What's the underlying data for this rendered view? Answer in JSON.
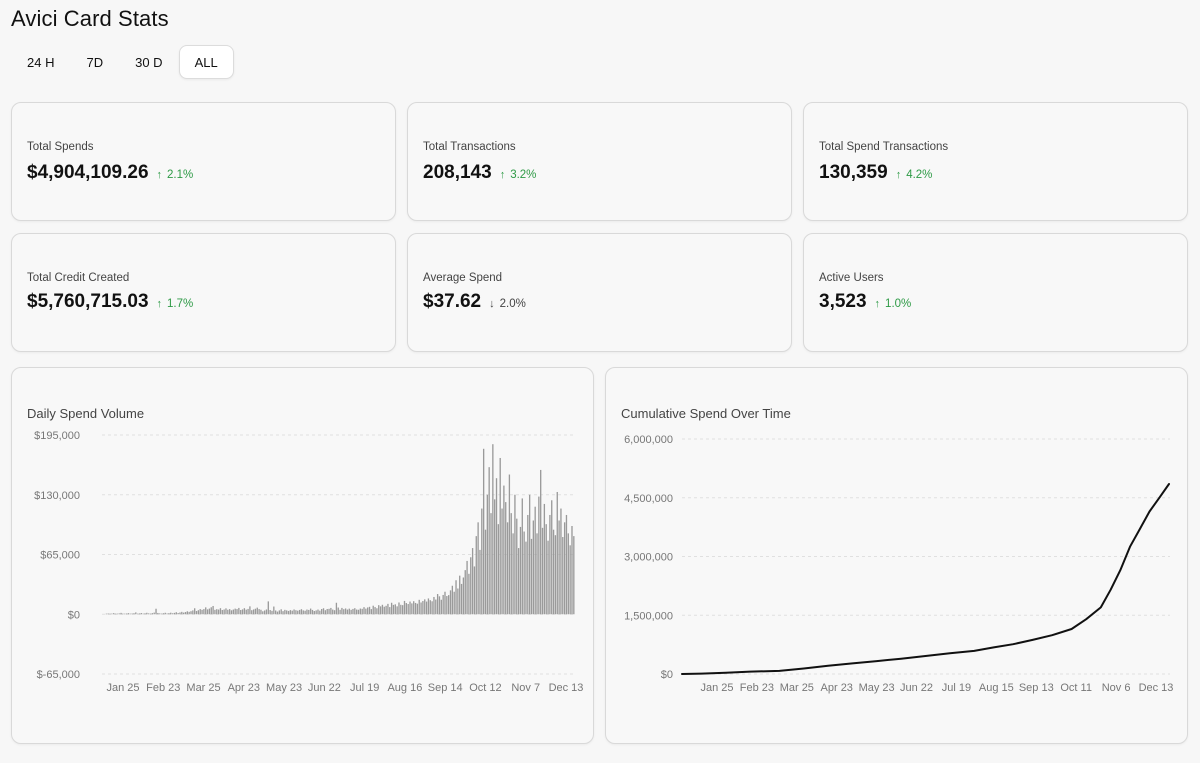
{
  "page": {
    "title": "Avici Card Stats"
  },
  "tabs": [
    {
      "label": "24 H",
      "active": false
    },
    {
      "label": "7D",
      "active": false
    },
    {
      "label": "30 D",
      "active": false
    },
    {
      "label": "ALL",
      "active": true
    }
  ],
  "stats": [
    {
      "label": "Total Spends",
      "value": "$4,904,109.26",
      "change": "2.1%",
      "direction": "up"
    },
    {
      "label": "Total Transactions",
      "value": "208,143",
      "change": "3.2%",
      "direction": "up"
    },
    {
      "label": "Total Spend Transactions",
      "value": "130,359",
      "change": "4.2%",
      "direction": "up"
    },
    {
      "label": "Total Credit Created",
      "value": "$5,760,715.03",
      "change": "1.7%",
      "direction": "up"
    },
    {
      "label": "Average Spend",
      "value": "$37.62",
      "change": "2.0%",
      "direction": "down"
    },
    {
      "label": "Active Users",
      "value": "3,523",
      "change": "1.0%",
      "direction": "up"
    }
  ],
  "colors": {
    "up": "#2e9a46",
    "down": "#444444",
    "bar": "#9a9a9a",
    "line": "#111111",
    "grid": "#e0e0e0"
  },
  "chart_data": [
    {
      "type": "bar",
      "title": "Daily Spend Volume",
      "yticks": [
        "$195,000",
        "$130,000",
        "$65,000",
        "$0",
        "$-65,000"
      ],
      "ytick_values": [
        195000,
        130000,
        65000,
        0,
        -65000
      ],
      "ylim": [
        -65000,
        195000
      ],
      "xticks": [
        "Jan 25",
        "Feb 23",
        "Mar 25",
        "Apr 23",
        "May 23",
        "Jun 22",
        "Jul 19",
        "Aug 16",
        "Sep 14",
        "Oct 12",
        "Nov 7",
        "Dec 13"
      ],
      "grid": true,
      "values": [
        0,
        0,
        500,
        800,
        400,
        700,
        1200,
        600,
        300,
        900,
        1500,
        700,
        400,
        800,
        1200,
        500,
        800,
        1100,
        2000,
        600,
        900,
        1300,
        700,
        1000,
        1600,
        900,
        700,
        1200,
        1800,
        6000,
        1400,
        900,
        700,
        1100,
        1600,
        800,
        1200,
        1700,
        1000,
        1500,
        2200,
        1300,
        1900,
        2600,
        1800,
        2400,
        3200,
        2600,
        3300,
        4200,
        6500,
        3500,
        4400,
        5600,
        4800,
        5600,
        7500,
        5300,
        6200,
        7600,
        9000,
        4800,
        5500,
        5100,
        6600,
        4600,
        5200,
        6400,
        4900,
        5600,
        4300,
        5100,
        6100,
        5600,
        6900,
        4600,
        5300,
        6600,
        5000,
        5800,
        8600,
        4400,
        5200,
        6000,
        7200,
        5600,
        4900,
        3200,
        4100,
        5200,
        14000,
        4600,
        3700,
        8400,
        4100,
        2900,
        4200,
        5400,
        3400,
        4800,
        4200,
        3600,
        4500,
        3900,
        5200,
        4400,
        3900,
        4700,
        5500,
        4200,
        3800,
        5100,
        4700,
        6200,
        4700,
        3500,
        4200,
        5100,
        3900,
        5700,
        6500,
        4400,
        5700,
        5900,
        6900,
        5100,
        4400,
        12500,
        7300,
        4800,
        6900,
        5500,
        6300,
        5100,
        6100,
        4800,
        5800,
        6600,
        5100,
        4900,
        6200,
        5900,
        7700,
        6100,
        7400,
        8100,
        5600,
        9300,
        7800,
        6500,
        9900,
        8600,
        10300,
        8200,
        9200,
        11300,
        7800,
        12500,
        10200,
        10800,
        8600,
        12800,
        10300,
        9900,
        14500,
        12200,
        11100,
        13800,
        11800,
        14200,
        12300,
        11500,
        15700,
        12800,
        14400,
        16200,
        13800,
        17200,
        15300,
        14100,
        18800,
        16000,
        22000,
        19500,
        15800,
        21000,
        24500,
        19800,
        20800,
        26000,
        31000,
        24500,
        37000,
        28000,
        42000,
        33000,
        40000,
        48000,
        58000,
        44000,
        62000,
        72000,
        52000,
        85000,
        100000,
        70000,
        115000,
        180000,
        92000,
        130000,
        160000,
        110000,
        185000,
        125000,
        148000,
        98000,
        170000,
        115000,
        140000,
        122000,
        100000,
        152000,
        110000,
        88000,
        130000,
        104000,
        72000,
        95000,
        126000,
        90000,
        79000,
        108000,
        130000,
        82000,
        102000,
        117000,
        88000,
        128000,
        157000,
        94000,
        120000,
        98000,
        80000,
        108000,
        124000,
        92000,
        86000,
        133000,
        102000,
        115000,
        84000,
        100000,
        108000,
        88000,
        75000,
        96000,
        85000
      ]
    },
    {
      "type": "line",
      "title": "Cumulative Spend Over Time",
      "yticks": [
        "6,000,000",
        "4,500,000",
        "3,000,000",
        "1,500,000",
        "$0"
      ],
      "ytick_values": [
        6000000,
        4500000,
        3000000,
        1500000,
        0
      ],
      "ylim": [
        0,
        6000000
      ],
      "xticks": [
        "Jan 25",
        "Feb 23",
        "Mar 25",
        "Apr 23",
        "May 23",
        "Jun 22",
        "Jul 19",
        "Aug 15",
        "Sep 13",
        "Oct 11",
        "Nov 6",
        "Dec 13"
      ],
      "grid": true,
      "x": [
        0,
        0.04,
        0.09,
        0.14,
        0.2,
        0.25,
        0.3,
        0.35,
        0.4,
        0.45,
        0.5,
        0.55,
        0.6,
        0.64,
        0.68,
        0.72,
        0.76,
        0.8,
        0.83,
        0.86,
        0.88,
        0.9,
        0.92,
        0.94,
        0.96,
        0.98,
        1.0
      ],
      "values": [
        0,
        10000,
        30000,
        60000,
        80000,
        140000,
        210000,
        270000,
        330000,
        390000,
        460000,
        530000,
        590000,
        680000,
        760000,
        870000,
        990000,
        1150000,
        1400000,
        1700000,
        2150000,
        2650000,
        3250000,
        3700000,
        4150000,
        4500000,
        4850000
      ]
    }
  ]
}
